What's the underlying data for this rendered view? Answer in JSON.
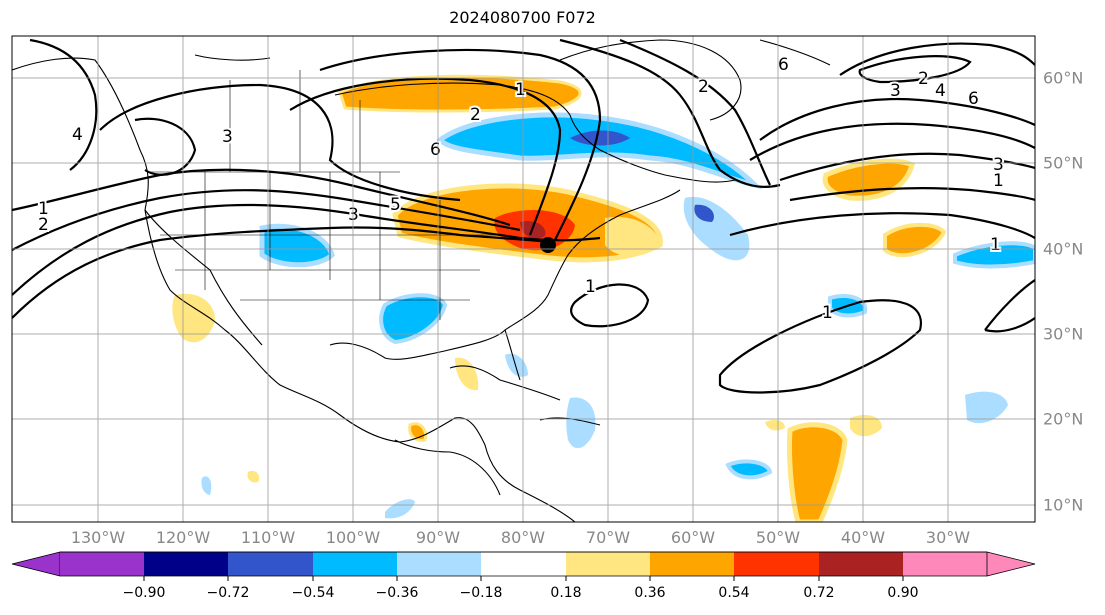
{
  "title": "2024080700 F072",
  "lon_labels": [
    "130°W",
    "120°W",
    "110°W",
    "100°W",
    "90°W",
    "80°W",
    "70°W",
    "60°W",
    "50°W",
    "40°W",
    "30°W"
  ],
  "lat_labels": [
    "60°N",
    "50°N",
    "40°N",
    "30°N",
    "20°N",
    "10°N"
  ],
  "colorbar": {
    "ticks": [
      "−0.90",
      "−0.72",
      "−0.54",
      "−0.36",
      "−0.18",
      "0.18",
      "0.36",
      "0.54",
      "0.72",
      "0.90"
    ],
    "colors": [
      "#9933cc",
      "#000088",
      "#3355cc",
      "#00bbff",
      "#aaddff",
      "#ffffff",
      "#ffe680",
      "#ffa500",
      "#ff3300",
      "#aa2222",
      "#ff88bb"
    ]
  },
  "contour_labels": [
    "1",
    "2",
    "3",
    "4",
    "5",
    "6",
    "2",
    "3",
    "4",
    "6",
    "1",
    "2",
    "3",
    "6",
    "1",
    "1",
    "1",
    "1",
    "3",
    "2"
  ],
  "map_style": {
    "grid": true,
    "land_outline_color": "#000000",
    "contour_color": "#000000"
  }
}
